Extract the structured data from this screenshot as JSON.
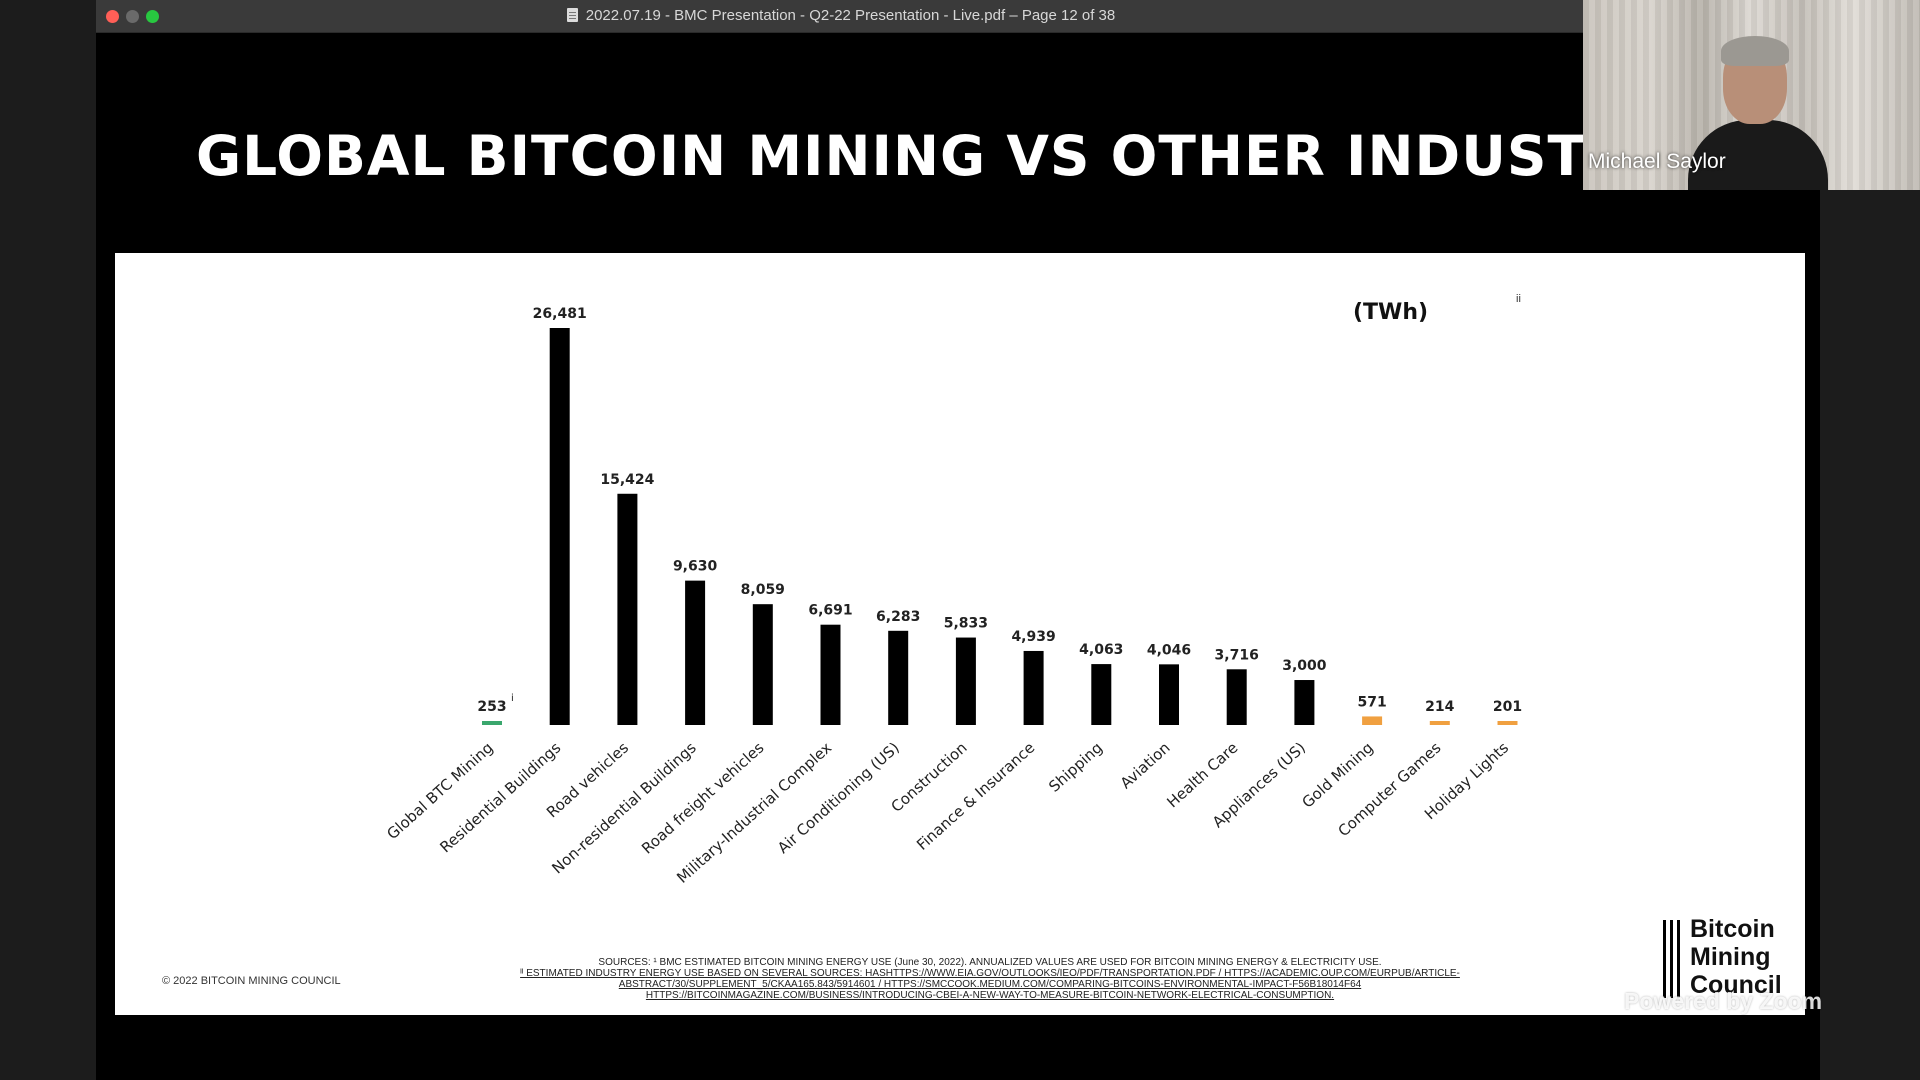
{
  "window": {
    "title": "2022.07.19 - BMC Presentation - Q2-22 Presentation - Live.pdf – Page 12 of 38",
    "traffic_lights": {
      "close": "#ff5f57",
      "minimize": "#6a6a6a",
      "zoom": "#28c840"
    },
    "document_icon": "document-icon"
  },
  "slide": {
    "title": "GLOBAL BITCOIN MINING VS OTHER INDUSTRIE",
    "unit_label": "(TWh)",
    "unit_superscript": "ii",
    "copyright": "© 2022 BITCOIN MINING COUNCIL",
    "sources": [
      "SOURCES: ¹ BMC ESTIMATED BITCOIN MINING ENERGY USE (June 30, 2022). ANNUALIZED VALUES ARE USED FOR BITCOIN MINING ENERGY & ELECTRICITY USE.",
      "ᴵᴵ ESTIMATED INDUSTRY ENERGY USE BASED ON SEVERAL SOURCES: HASHTTPS://WWW.EIA.GOV/OUTLOOKS/IEO/PDF/TRANSPORTATION.PDF / HTTPS://ACADEMIC.OUP.COM/EURPUB/ARTICLE-",
      "ABSTRACT/30/SUPPLEMENT_5/CKAA165.843/5914601 / HTTPS://SMCCOOK.MEDIUM.COM/COMPARING-BITCOINS-ENVIRONMENTAL-IMPACT-F56B18014F64",
      "HTTPS://BITCOINMAGAZINE.COM/BUSINESS/INTRODUCING-CBEI-A-NEW-WAY-TO-MEASURE-BITCOIN-NETWORK-ELECTRICAL-CONSUMPTION."
    ],
    "logo": {
      "line1": "Bitcoin",
      "line2": "Mining",
      "line3": "Council"
    },
    "bar_colors": {
      "btc": "#3aa76d",
      "default": "#000000",
      "small": "#f0a040"
    }
  },
  "chart_data": {
    "type": "bar",
    "categories": [
      "Global BTC Mining",
      "Residential Buildings",
      "Road vehicles",
      "Non-residential Buildings",
      "Road freight vehicles",
      "Military-Industrial Complex",
      "Air Conditioning (US)",
      "Construction",
      "Finance & Insurance",
      "Shipping",
      "Aviation",
      "Health Care",
      "Appliances (US)",
      "Gold Mining",
      "Computer Games",
      "Holiday Lights"
    ],
    "values": [
      253,
      26481,
      15424,
      9630,
      8059,
      6691,
      6283,
      5833,
      4939,
      4063,
      4046,
      3716,
      3000,
      571,
      214,
      201
    ],
    "value_labels": [
      "253",
      "26,481",
      "15,424",
      "9,630",
      "8,059",
      "6,691",
      "6,283",
      "5,833",
      "4,939",
      "4,063",
      "4,046",
      "3,716",
      "3,000",
      "571",
      "214",
      "201"
    ],
    "first_label_superscript": "i",
    "color_groups": [
      "btc",
      "default",
      "default",
      "default",
      "default",
      "default",
      "default",
      "default",
      "default",
      "default",
      "default",
      "default",
      "default",
      "small",
      "small",
      "small"
    ],
    "ylabel": "(TWh)",
    "ylim": [
      0,
      26481
    ],
    "grid": false,
    "legend": "none"
  },
  "zoom": {
    "participant_name": "Michael Saylor",
    "watermark": "Powered by Zoom"
  }
}
